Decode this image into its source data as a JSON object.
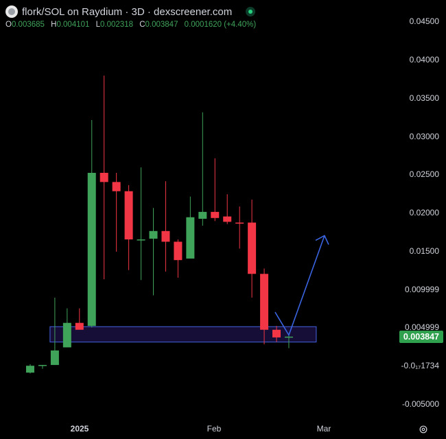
{
  "header": {
    "title": "flork/SOL on Raydium · 3D · dexscreener.com",
    "ohlc": {
      "o_label": "O",
      "o_value": "0.003685",
      "h_label": "H",
      "h_value": "0.004101",
      "l_label": "L",
      "l_value": "0.002318",
      "c_label": "C",
      "c_value": "0.003847",
      "change": "0.0001620 (+4.40%)"
    }
  },
  "y_axis": {
    "labels": [
      "0.04500",
      "0.04000",
      "0.03500",
      "0.03000",
      "0.02500",
      "0.02000",
      "0.01500",
      "0.009999",
      "0.004999",
      "-0.0₁₇1734",
      "-0.005000"
    ]
  },
  "x_axis": {
    "labels": [
      "2025",
      "Feb",
      "Mar"
    ]
  },
  "current_price": "0.003847",
  "colors": {
    "up": "#3fa35a",
    "down": "#f23645",
    "zone_fill": "#1a1040",
    "zone_border": "#3b55c4",
    "arrow": "#3a64e0",
    "price_tag": "#2fa04e"
  },
  "chart_data": {
    "type": "candlestick",
    "ylim": [
      -0.0075,
      0.0475
    ],
    "candles": [
      {
        "o": -0.0009,
        "h": 0.0002,
        "l": -0.001,
        "c": 0.0
      },
      {
        "o": 0.0,
        "h": 0.0001,
        "l": -0.0004,
        "c": 0.0001
      },
      {
        "o": 0.0001,
        "h": 0.0089,
        "l": 0.0001,
        "c": 0.002
      },
      {
        "o": 0.0024,
        "h": 0.0075,
        "l": 0.0024,
        "c": 0.0056
      },
      {
        "o": 0.0056,
        "h": 0.0075,
        "l": 0.0048,
        "c": 0.0047
      },
      {
        "o": 0.0052,
        "h": 0.0321,
        "l": 0.005,
        "c": 0.0252
      },
      {
        "o": 0.0252,
        "h": 0.0379,
        "l": 0.0113,
        "c": 0.024
      },
      {
        "o": 0.024,
        "h": 0.0252,
        "l": 0.0149,
        "c": 0.0228
      },
      {
        "o": 0.0228,
        "h": 0.0236,
        "l": 0.0125,
        "c": 0.0165
      },
      {
        "o": 0.0164,
        "h": 0.0259,
        "l": 0.0112,
        "c": 0.0165
      },
      {
        "o": 0.0166,
        "h": 0.0206,
        "l": 0.0092,
        "c": 0.0176
      },
      {
        "o": 0.0176,
        "h": 0.0241,
        "l": 0.0123,
        "c": 0.0162
      },
      {
        "o": 0.0162,
        "h": 0.0165,
        "l": 0.0115,
        "c": 0.0138
      },
      {
        "o": 0.014,
        "h": 0.0221,
        "l": 0.014,
        "c": 0.0194
      },
      {
        "o": 0.0192,
        "h": 0.0331,
        "l": 0.0183,
        "c": 0.0201
      },
      {
        "o": 0.0201,
        "h": 0.0271,
        "l": 0.0189,
        "c": 0.0193
      },
      {
        "o": 0.0195,
        "h": 0.0224,
        "l": 0.0185,
        "c": 0.0188
      },
      {
        "o": 0.0187,
        "h": 0.0208,
        "l": 0.0153,
        "c": 0.0186
      },
      {
        "o": 0.0187,
        "h": 0.0217,
        "l": 0.0089,
        "c": 0.012
      },
      {
        "o": 0.012,
        "h": 0.0127,
        "l": 0.0028,
        "c": 0.0047
      },
      {
        "o": 0.0047,
        "h": 0.0052,
        "l": 0.0031,
        "c": 0.0037
      },
      {
        "o": 0.0037,
        "h": 0.0041,
        "l": 0.0023,
        "c": 0.0038
      }
    ],
    "zone": {
      "x_start_index": 2,
      "x_end_index": 23,
      "y_low": 0.0031,
      "y_high": 0.0051
    }
  }
}
